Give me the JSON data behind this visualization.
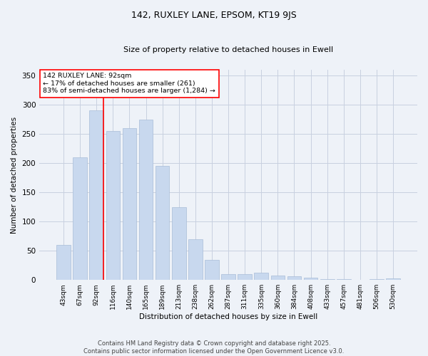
{
  "title": "142, RUXLEY LANE, EPSOM, KT19 9JS",
  "subtitle": "Size of property relative to detached houses in Ewell",
  "xlabel": "Distribution of detached houses by size in Ewell",
  "ylabel": "Number of detached properties",
  "bar_color": "#c8d8ee",
  "bar_edge_color": "#a8bcd8",
  "grid_color": "#c8d0e0",
  "background_color": "#eef2f8",
  "categories": [
    "43sqm",
    "67sqm",
    "92sqm",
    "116sqm",
    "140sqm",
    "165sqm",
    "189sqm",
    "213sqm",
    "238sqm",
    "262sqm",
    "287sqm",
    "311sqm",
    "335sqm",
    "360sqm",
    "384sqm",
    "408sqm",
    "433sqm",
    "457sqm",
    "481sqm",
    "506sqm",
    "530sqm"
  ],
  "values": [
    60,
    210,
    290,
    255,
    260,
    275,
    195,
    125,
    70,
    35,
    10,
    10,
    13,
    8,
    6,
    4,
    2,
    1,
    0,
    2,
    3
  ],
  "property_bin_index": 2,
  "annotation_title": "142 RUXLEY LANE: 92sqm",
  "annotation_line1": "← 17% of detached houses are smaller (261)",
  "annotation_line2": "83% of semi-detached houses are larger (1,284) →",
  "footer_line1": "Contains HM Land Registry data © Crown copyright and database right 2025.",
  "footer_line2": "Contains public sector information licensed under the Open Government Licence v3.0.",
  "ylim": [
    0,
    360
  ],
  "yticks": [
    0,
    50,
    100,
    150,
    200,
    250,
    300,
    350
  ]
}
